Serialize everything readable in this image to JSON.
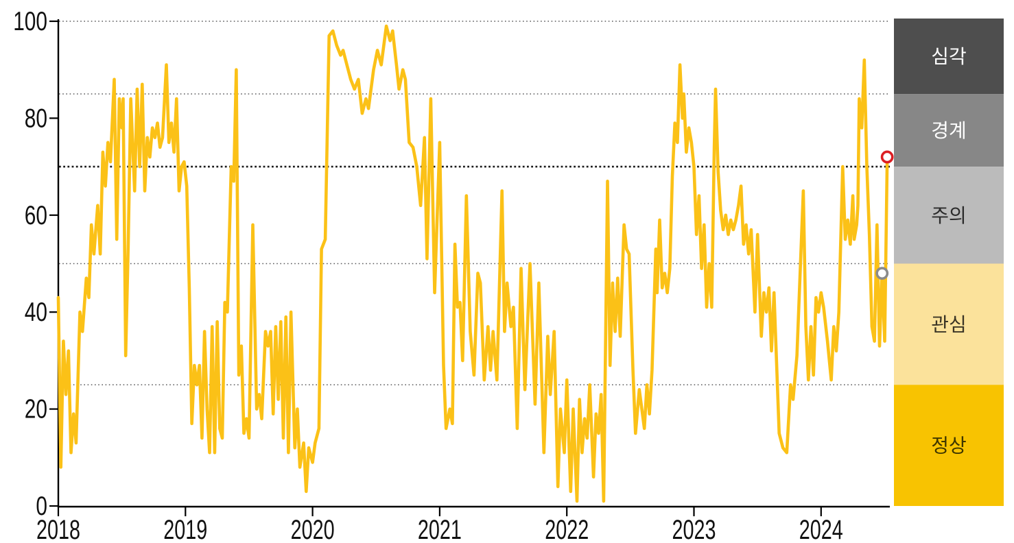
{
  "chart_data": {
    "type": "line",
    "x_axis": {
      "ticks": [
        "2018",
        "2019",
        "2020",
        "2021",
        "2022",
        "2023",
        "2024"
      ],
      "tick_values": [
        2018,
        2019,
        2020,
        2021,
        2022,
        2023,
        2024
      ],
      "range": [
        2018,
        2024.63
      ]
    },
    "y_axis": {
      "ticks": [
        "0",
        "20",
        "40",
        "60",
        "80",
        "100"
      ],
      "tick_values": [
        0,
        20,
        40,
        60,
        80,
        100
      ],
      "range": [
        0,
        100
      ]
    },
    "gridlines": {
      "grid_on": true,
      "dotted_values": [
        25,
        50,
        85,
        100
      ],
      "bold_value": 70
    },
    "legend_position": "right",
    "legend_bands": [
      {
        "label": "심각",
        "min": 85,
        "max": 100,
        "color": "#4E4E4E",
        "label_color": "#FFFFFF"
      },
      {
        "label": "경계",
        "min": 70,
        "max": 85,
        "color": "#878787",
        "label_color": "#FFFFFF"
      },
      {
        "label": "주의",
        "min": 50,
        "max": 70,
        "color": "#BBBBBB",
        "label_color": "#2B2B2B"
      },
      {
        "label": "관심",
        "min": 25,
        "max": 50,
        "color": "#FBE29B",
        "label_color": "#3B3526"
      },
      {
        "label": "정상",
        "min": 0,
        "max": 25,
        "color": "#F8C301",
        "label_color": "#3E3600"
      }
    ],
    "series": [
      {
        "name": "index",
        "color": "#FBC117",
        "width": 4.6,
        "points": [
          [
            2018.0,
            43
          ],
          [
            2018.02,
            8
          ],
          [
            2018.04,
            34
          ],
          [
            2018.06,
            23
          ],
          [
            2018.08,
            32
          ],
          [
            2018.1,
            11
          ],
          [
            2018.12,
            19
          ],
          [
            2018.14,
            13
          ],
          [
            2018.17,
            40
          ],
          [
            2018.19,
            36
          ],
          [
            2018.22,
            47
          ],
          [
            2018.24,
            43
          ],
          [
            2018.26,
            58
          ],
          [
            2018.28,
            52
          ],
          [
            2018.31,
            62
          ],
          [
            2018.33,
            52
          ],
          [
            2018.35,
            73
          ],
          [
            2018.37,
            66
          ],
          [
            2018.39,
            75
          ],
          [
            2018.41,
            71
          ],
          [
            2018.44,
            88
          ],
          [
            2018.46,
            55
          ],
          [
            2018.48,
            84
          ],
          [
            2018.5,
            78
          ],
          [
            2018.51,
            84
          ],
          [
            2018.53,
            31
          ],
          [
            2018.55,
            54
          ],
          [
            2018.57,
            84
          ],
          [
            2018.6,
            65
          ],
          [
            2018.62,
            86
          ],
          [
            2018.64,
            70
          ],
          [
            2018.66,
            87
          ],
          [
            2018.68,
            65
          ],
          [
            2018.7,
            76
          ],
          [
            2018.72,
            72
          ],
          [
            2018.74,
            78
          ],
          [
            2018.76,
            76
          ],
          [
            2018.78,
            79
          ],
          [
            2018.8,
            74
          ],
          [
            2018.82,
            76
          ],
          [
            2018.85,
            91
          ],
          [
            2018.87,
            75
          ],
          [
            2018.89,
            79
          ],
          [
            2018.91,
            73
          ],
          [
            2018.93,
            84
          ],
          [
            2018.95,
            65
          ],
          [
            2018.97,
            70
          ],
          [
            2018.99,
            71
          ],
          [
            2019.01,
            66
          ],
          [
            2019.03,
            45
          ],
          [
            2019.05,
            17
          ],
          [
            2019.07,
            29
          ],
          [
            2019.09,
            25
          ],
          [
            2019.11,
            29
          ],
          [
            2019.13,
            14
          ],
          [
            2019.15,
            36
          ],
          [
            2019.17,
            20
          ],
          [
            2019.19,
            11
          ],
          [
            2019.21,
            37
          ],
          [
            2019.23,
            11
          ],
          [
            2019.25,
            38
          ],
          [
            2019.27,
            16
          ],
          [
            2019.29,
            14
          ],
          [
            2019.31,
            42
          ],
          [
            2019.33,
            40
          ],
          [
            2019.36,
            70
          ],
          [
            2019.38,
            67
          ],
          [
            2019.4,
            90
          ],
          [
            2019.42,
            27
          ],
          [
            2019.44,
            33
          ],
          [
            2019.46,
            15
          ],
          [
            2019.48,
            18
          ],
          [
            2019.5,
            14
          ],
          [
            2019.53,
            58
          ],
          [
            2019.56,
            20
          ],
          [
            2019.58,
            23
          ],
          [
            2019.6,
            18
          ],
          [
            2019.63,
            36
          ],
          [
            2019.65,
            33
          ],
          [
            2019.67,
            36
          ],
          [
            2019.69,
            19
          ],
          [
            2019.71,
            37
          ],
          [
            2019.73,
            22
          ],
          [
            2019.75,
            38
          ],
          [
            2019.77,
            14
          ],
          [
            2019.79,
            39
          ],
          [
            2019.81,
            11
          ],
          [
            2019.83,
            40
          ],
          [
            2019.86,
            12
          ],
          [
            2019.88,
            20
          ],
          [
            2019.9,
            8
          ],
          [
            2019.93,
            13
          ],
          [
            2019.95,
            3
          ],
          [
            2019.97,
            12
          ],
          [
            2020.0,
            9
          ],
          [
            2020.02,
            13
          ],
          [
            2020.05,
            16
          ],
          [
            2020.07,
            53
          ],
          [
            2020.1,
            55
          ],
          [
            2020.13,
            97
          ],
          [
            2020.16,
            98
          ],
          [
            2020.19,
            95
          ],
          [
            2020.22,
            93
          ],
          [
            2020.24,
            94
          ],
          [
            2020.27,
            91
          ],
          [
            2020.3,
            88
          ],
          [
            2020.33,
            86
          ],
          [
            2020.36,
            88
          ],
          [
            2020.39,
            81
          ],
          [
            2020.42,
            84
          ],
          [
            2020.44,
            82
          ],
          [
            2020.48,
            90
          ],
          [
            2020.51,
            94
          ],
          [
            2020.54,
            91
          ],
          [
            2020.58,
            99
          ],
          [
            2020.61,
            96
          ],
          [
            2020.63,
            98
          ],
          [
            2020.66,
            91
          ],
          [
            2020.68,
            86
          ],
          [
            2020.71,
            90
          ],
          [
            2020.73,
            88
          ],
          [
            2020.76,
            75
          ],
          [
            2020.79,
            74
          ],
          [
            2020.82,
            70
          ],
          [
            2020.85,
            62
          ],
          [
            2020.88,
            76
          ],
          [
            2020.9,
            51
          ],
          [
            2020.93,
            84
          ],
          [
            2020.96,
            44
          ],
          [
            2021.0,
            75
          ],
          [
            2021.03,
            29
          ],
          [
            2021.05,
            16
          ],
          [
            2021.08,
            20
          ],
          [
            2021.1,
            17
          ],
          [
            2021.12,
            54
          ],
          [
            2021.14,
            41
          ],
          [
            2021.16,
            42
          ],
          [
            2021.18,
            30
          ],
          [
            2021.21,
            64
          ],
          [
            2021.24,
            36
          ],
          [
            2021.27,
            27
          ],
          [
            2021.3,
            48
          ],
          [
            2021.32,
            46
          ],
          [
            2021.35,
            26
          ],
          [
            2021.38,
            37
          ],
          [
            2021.4,
            28
          ],
          [
            2021.42,
            36
          ],
          [
            2021.45,
            26
          ],
          [
            2021.49,
            65
          ],
          [
            2021.51,
            36
          ],
          [
            2021.53,
            46
          ],
          [
            2021.56,
            37
          ],
          [
            2021.58,
            41
          ],
          [
            2021.61,
            16
          ],
          [
            2021.64,
            49
          ],
          [
            2021.67,
            24
          ],
          [
            2021.71,
            50
          ],
          [
            2021.75,
            21
          ],
          [
            2021.78,
            46
          ],
          [
            2021.82,
            11
          ],
          [
            2021.85,
            35
          ],
          [
            2021.87,
            23
          ],
          [
            2021.9,
            36
          ],
          [
            2021.93,
            4
          ],
          [
            2021.95,
            20
          ],
          [
            2021.98,
            11
          ],
          [
            2022.0,
            26
          ],
          [
            2022.03,
            3
          ],
          [
            2022.05,
            20
          ],
          [
            2022.08,
            1
          ],
          [
            2022.1,
            22
          ],
          [
            2022.12,
            11
          ],
          [
            2022.14,
            18
          ],
          [
            2022.16,
            14
          ],
          [
            2022.18,
            25
          ],
          [
            2022.21,
            6
          ],
          [
            2022.23,
            19
          ],
          [
            2022.25,
            15
          ],
          [
            2022.27,
            23
          ],
          [
            2022.29,
            1
          ],
          [
            2022.32,
            67
          ],
          [
            2022.34,
            29
          ],
          [
            2022.36,
            46
          ],
          [
            2022.38,
            36
          ],
          [
            2022.4,
            47
          ],
          [
            2022.42,
            35
          ],
          [
            2022.45,
            58
          ],
          [
            2022.47,
            53
          ],
          [
            2022.49,
            52
          ],
          [
            2022.52,
            28
          ],
          [
            2022.54,
            15
          ],
          [
            2022.57,
            24
          ],
          [
            2022.59,
            20
          ],
          [
            2022.61,
            16
          ],
          [
            2022.63,
            25
          ],
          [
            2022.65,
            19
          ],
          [
            2022.67,
            28
          ],
          [
            2022.7,
            53
          ],
          [
            2022.71,
            44
          ],
          [
            2022.73,
            59
          ],
          [
            2022.75,
            45
          ],
          [
            2022.77,
            48
          ],
          [
            2022.79,
            44
          ],
          [
            2022.81,
            49
          ],
          [
            2022.83,
            68
          ],
          [
            2022.85,
            79
          ],
          [
            2022.87,
            75
          ],
          [
            2022.89,
            91
          ],
          [
            2022.91,
            80
          ],
          [
            2022.92,
            85
          ],
          [
            2022.94,
            73
          ],
          [
            2022.96,
            78
          ],
          [
            2022.98,
            75
          ],
          [
            2023.0,
            70
          ],
          [
            2023.02,
            56
          ],
          [
            2023.04,
            64
          ],
          [
            2023.06,
            49
          ],
          [
            2023.08,
            58
          ],
          [
            2023.1,
            41
          ],
          [
            2023.12,
            50
          ],
          [
            2023.14,
            41
          ],
          [
            2023.16,
            74
          ],
          [
            2023.17,
            86
          ],
          [
            2023.19,
            69
          ],
          [
            2023.21,
            61
          ],
          [
            2023.23,
            57
          ],
          [
            2023.25,
            60
          ],
          [
            2023.27,
            56
          ],
          [
            2023.29,
            59
          ],
          [
            2023.31,
            57
          ],
          [
            2023.33,
            59
          ],
          [
            2023.35,
            62
          ],
          [
            2023.37,
            66
          ],
          [
            2023.39,
            54
          ],
          [
            2023.41,
            58
          ],
          [
            2023.43,
            52
          ],
          [
            2023.45,
            57
          ],
          [
            2023.48,
            40
          ],
          [
            2023.5,
            56
          ],
          [
            2023.53,
            35
          ],
          [
            2023.55,
            44
          ],
          [
            2023.57,
            40
          ],
          [
            2023.59,
            45
          ],
          [
            2023.61,
            32
          ],
          [
            2023.63,
            44
          ],
          [
            2023.67,
            15
          ],
          [
            2023.7,
            12
          ],
          [
            2023.73,
            11
          ],
          [
            2023.76,
            25
          ],
          [
            2023.78,
            22
          ],
          [
            2023.81,
            31
          ],
          [
            2023.86,
            65
          ],
          [
            2023.88,
            37
          ],
          [
            2023.9,
            26
          ],
          [
            2023.92,
            37
          ],
          [
            2023.94,
            27
          ],
          [
            2023.96,
            43
          ],
          [
            2023.98,
            40
          ],
          [
            2024.0,
            44
          ],
          [
            2024.02,
            41
          ],
          [
            2024.05,
            34
          ],
          [
            2024.08,
            26
          ],
          [
            2024.1,
            37
          ],
          [
            2024.12,
            32
          ],
          [
            2024.14,
            40
          ],
          [
            2024.17,
            70
          ],
          [
            2024.19,
            55
          ],
          [
            2024.21,
            59
          ],
          [
            2024.23,
            54
          ],
          [
            2024.25,
            64
          ],
          [
            2024.26,
            55
          ],
          [
            2024.28,
            58
          ],
          [
            2024.29,
            62
          ],
          [
            2024.3,
            84
          ],
          [
            2024.32,
            78
          ],
          [
            2024.34,
            92
          ],
          [
            2024.36,
            70
          ],
          [
            2024.38,
            56
          ],
          [
            2024.4,
            37
          ],
          [
            2024.42,
            34
          ],
          [
            2024.44,
            58
          ],
          [
            2024.46,
            33
          ],
          [
            2024.48,
            48
          ],
          [
            2024.5,
            34
          ],
          [
            2024.52,
            72
          ]
        ]
      }
    ],
    "markers": [
      {
        "name": "previous-point",
        "x": 2024.48,
        "y": 48,
        "ring_color": "#8B8B8B"
      },
      {
        "name": "latest-point",
        "x": 2024.52,
        "y": 72,
        "ring_color": "#DC1E23"
      }
    ],
    "colors": {
      "background": "#FFFFFF",
      "axis": "#000000",
      "tick_label": "#111111",
      "gridline": "#58585A",
      "bold_gridline": "#1A1A1A"
    }
  }
}
